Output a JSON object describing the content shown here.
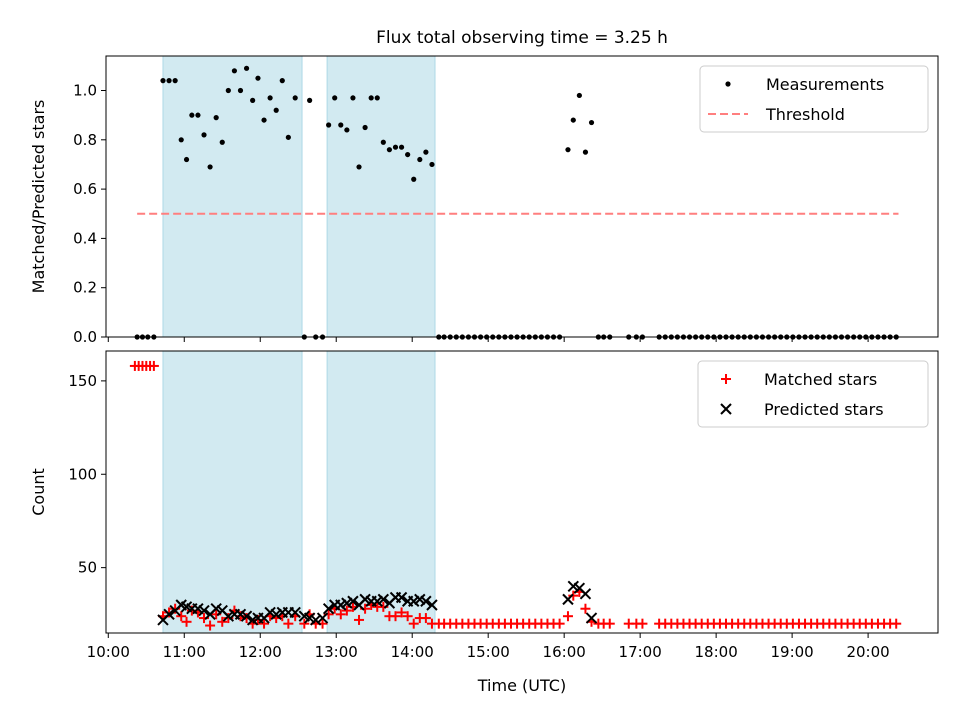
{
  "title": "Flux total observing time = 3.25 h",
  "colors": {
    "measurement": "#000000",
    "threshold": "#ff7f7f",
    "matched": "#ff0000",
    "predicted": "#000000",
    "shade": "#add8e6"
  },
  "chart_data": [
    {
      "type": "scatter",
      "ylabel": "Matched/Predicted stars",
      "xlim": [
        9.97,
        20.92
      ],
      "ylim": [
        0,
        1.14
      ],
      "yticks": [
        0.0,
        0.2,
        0.4,
        0.6,
        0.8,
        1.0
      ],
      "ytick_labels": [
        "0.0",
        "0.2",
        "0.4",
        "0.6",
        "0.8",
        "1.0"
      ],
      "legend": {
        "location": "upper right",
        "entries": [
          "Measurements",
          "Threshold"
        ]
      },
      "shaded_intervals": [
        [
          10.72,
          12.55
        ],
        [
          12.88,
          14.3
        ]
      ],
      "threshold": {
        "name": "Threshold",
        "y": 0.5,
        "x": [
          10.38,
          20.4
        ]
      },
      "series": [
        {
          "name": "Measurements",
          "x": [
            10.38,
            10.45,
            10.52,
            10.6,
            10.72,
            10.8,
            10.88,
            10.96,
            11.03,
            11.1,
            11.18,
            11.26,
            11.34,
            11.42,
            11.5,
            11.58,
            11.66,
            11.74,
            11.82,
            11.9,
            11.97,
            12.05,
            12.13,
            12.21,
            12.29,
            12.37,
            12.46,
            12.58,
            12.65,
            12.73,
            12.82,
            12.9,
            12.98,
            13.06,
            13.14,
            13.22,
            13.3,
            13.38,
            13.46,
            13.54,
            13.62,
            13.7,
            13.78,
            13.86,
            13.94,
            14.02,
            14.1,
            14.18,
            14.26,
            14.35,
            14.42,
            14.5,
            14.58,
            14.66,
            14.74,
            14.82,
            14.9,
            14.98,
            15.06,
            15.14,
            15.22,
            15.3,
            15.38,
            15.46,
            15.54,
            15.62,
            15.7,
            15.78,
            15.86,
            15.94,
            16.05,
            16.12,
            16.2,
            16.28,
            16.36,
            16.45,
            16.52,
            16.6,
            16.85,
            16.95,
            17.03,
            17.25,
            17.33,
            17.41,
            17.49,
            17.57,
            17.65,
            17.73,
            17.81,
            17.89,
            17.97,
            18.05,
            18.13,
            18.21,
            18.29,
            18.37,
            18.45,
            18.53,
            18.61,
            18.69,
            18.77,
            18.85,
            18.93,
            19.01,
            19.09,
            19.17,
            19.25,
            19.33,
            19.41,
            19.49,
            19.57,
            19.65,
            19.73,
            19.81,
            19.89,
            19.97,
            20.05,
            20.13,
            20.21,
            20.29,
            20.37
          ],
          "y": [
            0,
            0,
            0,
            0,
            1.04,
            1.04,
            1.04,
            0.8,
            0.72,
            0.9,
            0.9,
            0.82,
            0.69,
            0.89,
            0.79,
            1.0,
            1.08,
            1.0,
            1.09,
            0.96,
            1.05,
            0.88,
            0.97,
            0.92,
            1.04,
            0.81,
            0.97,
            0,
            0.96,
            0,
            0,
            0.86,
            0.97,
            0.86,
            0.84,
            0.97,
            0.69,
            0.85,
            0.97,
            0.97,
            0.79,
            0.76,
            0.77,
            0.77,
            0.74,
            0.64,
            0.72,
            0.75,
            0.7,
            0,
            0,
            0,
            0,
            0,
            0,
            0,
            0,
            0,
            0,
            0,
            0,
            0,
            0,
            0,
            0,
            0,
            0,
            0,
            0,
            0,
            0.76,
            0.88,
            0.98,
            0.75,
            0.87,
            0,
            0,
            0,
            0,
            0,
            0,
            0,
            0,
            0,
            0,
            0,
            0,
            0,
            0,
            0,
            0,
            0,
            0,
            0,
            0,
            0,
            0,
            0,
            0,
            0,
            0,
            0,
            0,
            0,
            0,
            0,
            0,
            0,
            0,
            0,
            0,
            0,
            0,
            0,
            0,
            0,
            0,
            0,
            0,
            0,
            0
          ]
        }
      ]
    },
    {
      "type": "scatter",
      "ylabel": "Count",
      "xlabel": "Time (UTC)",
      "xlim": [
        9.97,
        20.92
      ],
      "ylim": [
        15,
        166
      ],
      "yticks": [
        50,
        100,
        150
      ],
      "ytick_labels": [
        "50",
        "100",
        "150"
      ],
      "xticks": [
        10,
        11,
        12,
        13,
        14,
        15,
        16,
        17,
        18,
        19,
        20
      ],
      "xtick_labels": [
        "10:00",
        "11:00",
        "12:00",
        "13:00",
        "14:00",
        "15:00",
        "16:00",
        "17:00",
        "18:00",
        "19:00",
        "20:00"
      ],
      "legend": {
        "location": "upper right",
        "entries": [
          "Matched stars",
          "Predicted stars"
        ]
      },
      "shaded_intervals": [
        [
          10.72,
          12.55
        ],
        [
          12.88,
          14.3
        ]
      ],
      "series": [
        {
          "name": "Matched stars",
          "x": [
            10.35,
            10.4,
            10.45,
            10.5,
            10.55,
            10.6,
            10.72,
            10.8,
            10.88,
            10.96,
            11.03,
            11.1,
            11.18,
            11.26,
            11.34,
            11.42,
            11.5,
            11.58,
            11.66,
            11.74,
            11.82,
            11.9,
            11.97,
            12.05,
            12.13,
            12.21,
            12.29,
            12.37,
            12.46,
            12.58,
            12.65,
            12.73,
            12.82,
            12.9,
            12.98,
            13.06,
            13.14,
            13.22,
            13.3,
            13.38,
            13.46,
            13.54,
            13.62,
            13.7,
            13.78,
            13.86,
            13.94,
            14.02,
            14.1,
            14.18,
            14.26,
            14.35,
            14.42,
            14.5,
            14.58,
            14.66,
            14.74,
            14.82,
            14.9,
            14.98,
            15.06,
            15.14,
            15.22,
            15.3,
            15.38,
            15.46,
            15.54,
            15.62,
            15.7,
            15.78,
            15.86,
            15.94,
            16.05,
            16.12,
            16.2,
            16.28,
            16.36,
            16.45,
            16.52,
            16.6,
            16.85,
            16.95,
            17.03,
            17.25,
            17.33,
            17.41,
            17.49,
            17.57,
            17.65,
            17.73,
            17.81,
            17.89,
            17.97,
            18.05,
            18.13,
            18.21,
            18.29,
            18.37,
            18.45,
            18.53,
            18.61,
            18.69,
            18.77,
            18.85,
            18.93,
            19.01,
            19.09,
            19.17,
            19.25,
            19.33,
            19.41,
            19.49,
            19.57,
            19.65,
            19.73,
            19.81,
            19.89,
            19.97,
            20.05,
            20.13,
            20.21,
            20.29,
            20.37
          ],
          "y": [
            158,
            158,
            158,
            158,
            158,
            158,
            24,
            26,
            28,
            24,
            21,
            27,
            26,
            23,
            19,
            25,
            21,
            23,
            27,
            24,
            23,
            20,
            22,
            20,
            24,
            23,
            24,
            20,
            24,
            20,
            25,
            20,
            20,
            25,
            28,
            25,
            27,
            29,
            22,
            28,
            30,
            29,
            29,
            24,
            24,
            26,
            24,
            20,
            23,
            23,
            20,
            20,
            20,
            20,
            20,
            20,
            20,
            20,
            20,
            20,
            20,
            20,
            20,
            20,
            20,
            20,
            20,
            20,
            20,
            20,
            20,
            20,
            24,
            35,
            37,
            28,
            21,
            20,
            20,
            20,
            20,
            20,
            20,
            20,
            20,
            20,
            20,
            20,
            20,
            20,
            20,
            20,
            20,
            20,
            20,
            20,
            20,
            20,
            20,
            20,
            20,
            20,
            20,
            20,
            20,
            20,
            20,
            20,
            20,
            20,
            20,
            20,
            20,
            20,
            20,
            20,
            20,
            20,
            20,
            20,
            20,
            20,
            20
          ]
        },
        {
          "name": "Predicted stars",
          "x": [
            10.72,
            10.8,
            10.88,
            10.96,
            11.03,
            11.1,
            11.18,
            11.26,
            11.34,
            11.42,
            11.5,
            11.58,
            11.66,
            11.74,
            11.82,
            11.9,
            11.97,
            12.05,
            12.13,
            12.21,
            12.29,
            12.37,
            12.46,
            12.58,
            12.65,
            12.73,
            12.82,
            12.9,
            12.98,
            13.06,
            13.14,
            13.22,
            13.3,
            13.38,
            13.46,
            13.54,
            13.62,
            13.7,
            13.78,
            13.86,
            13.94,
            14.02,
            14.1,
            14.18,
            14.26,
            16.05,
            16.12,
            16.2,
            16.28,
            16.36
          ],
          "y": [
            22,
            25,
            27,
            30,
            29,
            28,
            28,
            27,
            25,
            28,
            27,
            24,
            25,
            25,
            24,
            22,
            23,
            23,
            26,
            25,
            26,
            26,
            26,
            24,
            23,
            22,
            23,
            28,
            30,
            30,
            31,
            32,
            30,
            33,
            32,
            32,
            33,
            31,
            34,
            34,
            32,
            32,
            33,
            32,
            30,
            33,
            40,
            39,
            36,
            23
          ]
        }
      ]
    }
  ]
}
